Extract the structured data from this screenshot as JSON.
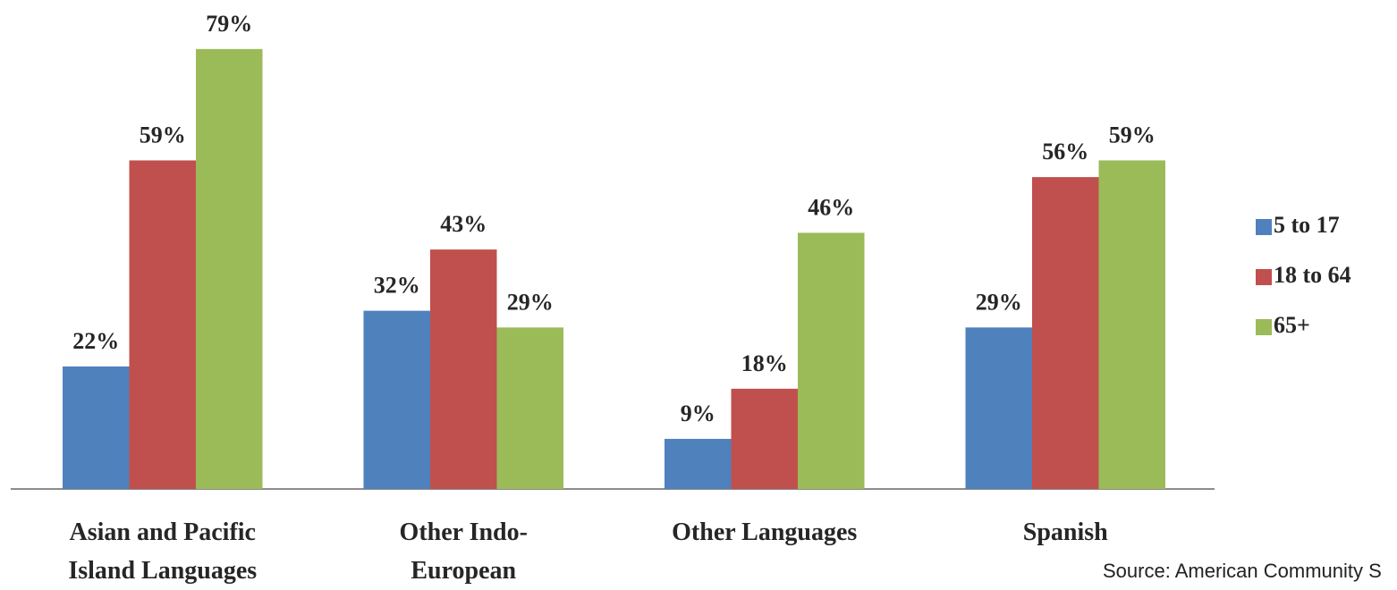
{
  "chart_data": {
    "type": "bar",
    "categories": [
      "Asian and Pacific Island Languages",
      "Other Indo-European",
      "Other Languages",
      "Spanish"
    ],
    "series": [
      {
        "name": "5 to 17",
        "color": "#4f81bd",
        "values": [
          22,
          32,
          9,
          29
        ],
        "value_labels": [
          "22%",
          "32%",
          "9%",
          "29%"
        ]
      },
      {
        "name": "18 to 64",
        "color": "#c0504d",
        "values": [
          59,
          43,
          18,
          56
        ],
        "value_labels": [
          "59%",
          "43%",
          "18%",
          "56%"
        ]
      },
      {
        "name": "65+",
        "color": "#9bbb59",
        "values": [
          79,
          29,
          46,
          59
        ],
        "value_labels": [
          "79%",
          "29%",
          "46%",
          "59%"
        ]
      }
    ],
    "legend": "right",
    "source": "Source: American Community S"
  }
}
